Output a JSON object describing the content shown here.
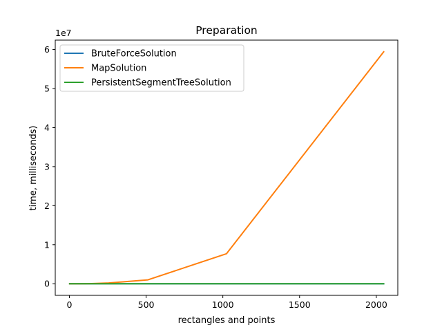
{
  "chart_data": {
    "type": "line",
    "title": "Preparation",
    "xlabel": "rectangles and points",
    "ylabel": "time, milliseconds)",
    "y_offset_text": "1e7",
    "xlim": [
      -92,
      2140
    ],
    "ylim": [
      -2970000,
      62400000
    ],
    "xticks": [
      0,
      500,
      1000,
      1500,
      2000
    ],
    "yticks": [
      0,
      10000000,
      20000000,
      30000000,
      40000000,
      50000000,
      60000000
    ],
    "ytick_labels": [
      "0",
      "1",
      "2",
      "3",
      "4",
      "5",
      "6"
    ],
    "legend_position": "top-left",
    "grid": false,
    "x": [
      2,
      4,
      8,
      16,
      32,
      64,
      128,
      256,
      512,
      1024,
      2048
    ],
    "series": [
      {
        "name": "BruteForceSolution",
        "color": "#1f77b4",
        "values": [
          0,
          0,
          0,
          0,
          0,
          0,
          0,
          0,
          0,
          0,
          0
        ]
      },
      {
        "name": "MapSolution",
        "color": "#ff7f0e",
        "values": [
          0,
          0,
          0,
          0,
          0,
          0,
          20000,
          200000,
          1000000,
          7700000,
          59400000
        ]
      },
      {
        "name": "PersistentSegmentTreeSolution",
        "color": "#2ca02c",
        "values": [
          0,
          0,
          0,
          0,
          0,
          0,
          0,
          0,
          0,
          0,
          0
        ]
      }
    ]
  }
}
